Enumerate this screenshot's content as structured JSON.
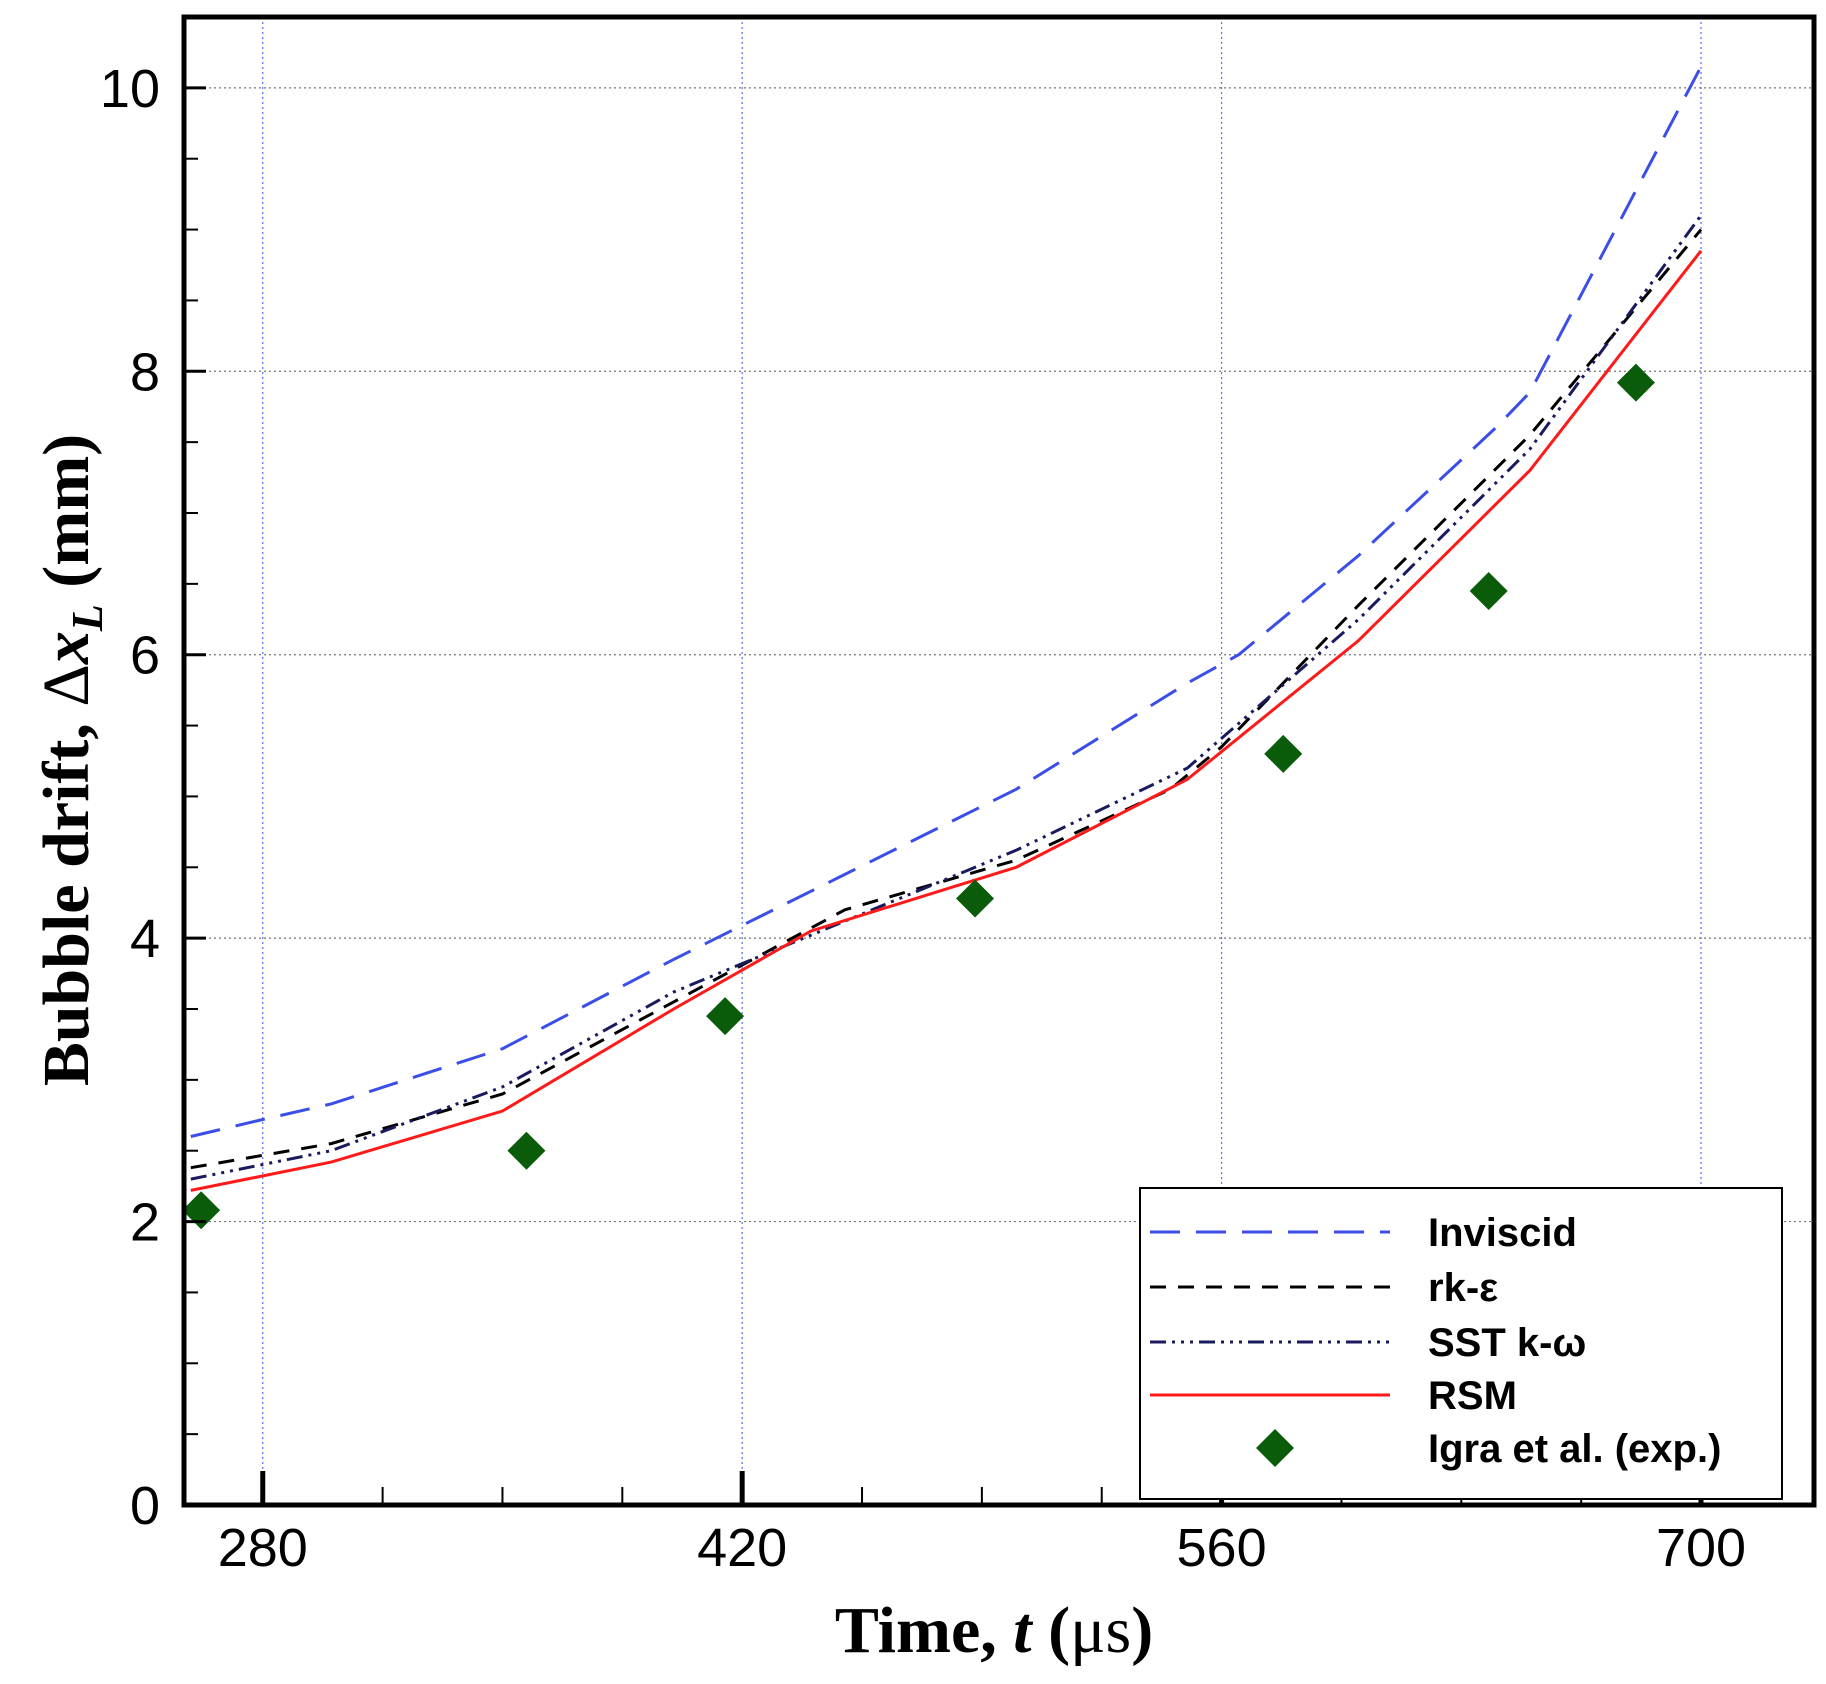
{
  "chart_data": {
    "type": "line",
    "title": "",
    "xlabel": "Time, t (μs)",
    "xlabel_parts": {
      "prefix": "Time, ",
      "var": "t",
      "open": " (",
      "unit": "μs",
      "close": ")"
    },
    "ylabel": "Bubble drift, Δx_L (mm)",
    "ylabel_parts": {
      "prefix": "Bubble drift, ",
      "delta": "Δ",
      "var": "x",
      "sub": "L",
      "suffix": " (mm)"
    },
    "xlim": [
      257,
      733
    ],
    "ylim": [
      0,
      10.5
    ],
    "xticks": [
      280,
      420,
      560,
      700
    ],
    "yticks": [
      0,
      2,
      4,
      6,
      8,
      10
    ],
    "grid": true,
    "legend_position": "bottom-right",
    "series": [
      {
        "name": "Inviscid",
        "color": "#3b4ee8",
        "dash": "30 16",
        "x": [
          259,
          280,
          300,
          350,
          400,
          450,
          500,
          550,
          565,
          600,
          640,
          650,
          700
        ],
        "y": [
          2.6,
          2.72,
          2.83,
          3.22,
          3.85,
          4.45,
          5.05,
          5.8,
          6.0,
          6.7,
          7.6,
          7.85,
          10.15
        ]
      },
      {
        "name": "rk-ε",
        "color": "#000000",
        "dash": "16 12",
        "x": [
          259,
          300,
          350,
          400,
          450,
          500,
          545,
          560,
          600,
          650,
          700
        ],
        "y": [
          2.38,
          2.55,
          2.9,
          3.55,
          4.2,
          4.55,
          5.05,
          5.35,
          6.35,
          7.55,
          9.0
        ]
      },
      {
        "name": "SST k-ω",
        "color": "#1a1a5e",
        "dash": "16 6 3 6 3 6 3 6",
        "x": [
          259,
          300,
          350,
          400,
          450,
          500,
          550,
          600,
          650,
          700
        ],
        "y": [
          2.3,
          2.5,
          2.95,
          3.62,
          4.12,
          4.62,
          5.2,
          6.25,
          7.45,
          9.1
        ]
      },
      {
        "name": "RSM",
        "color": "#ff1a1a",
        "dash": "",
        "x": [
          259,
          300,
          350,
          400,
          440,
          500,
          550,
          600,
          650,
          700
        ],
        "y": [
          2.22,
          2.42,
          2.78,
          3.5,
          4.05,
          4.5,
          5.12,
          6.1,
          7.3,
          8.85
        ]
      },
      {
        "name": "Igra et al. (exp.)",
        "color": "#0a5c0a",
        "marker": "diamond",
        "x": [
          262,
          357,
          415,
          488,
          578,
          638,
          681
        ],
        "y": [
          2.08,
          2.5,
          3.45,
          4.28,
          5.3,
          6.45,
          7.92
        ]
      }
    ]
  }
}
